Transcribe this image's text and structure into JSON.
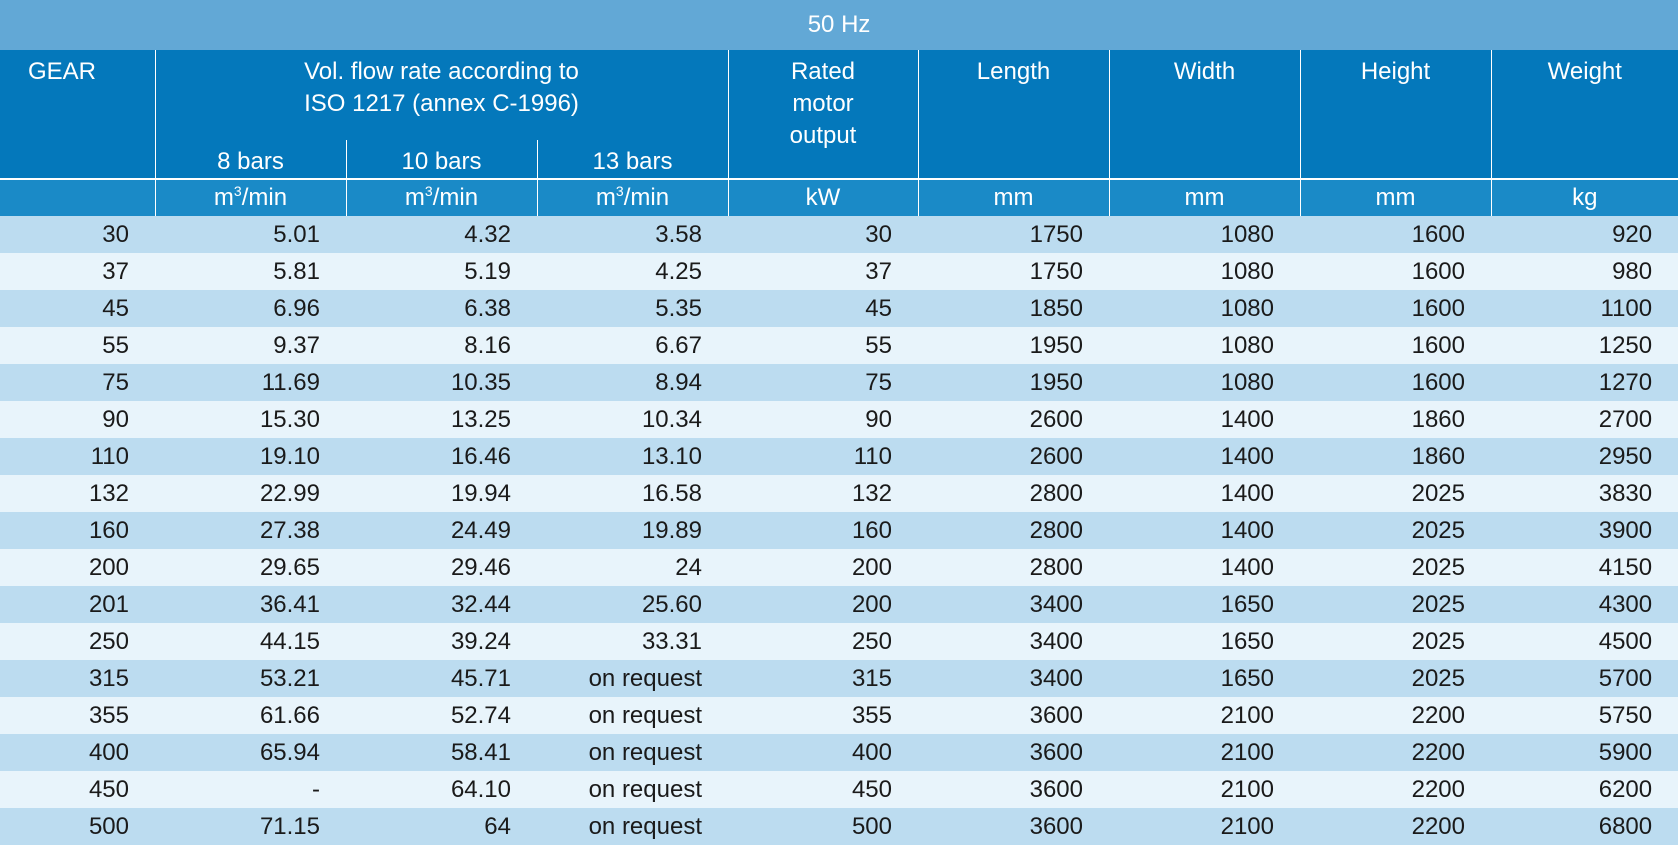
{
  "frequency": "50 Hz",
  "headers": {
    "gear": "GEAR",
    "flow_line1": "Vol. flow rate according to",
    "flow_line2": "ISO 1217 (annex C-1996)",
    "bars": [
      "8 bars",
      "10 bars",
      "13 bars"
    ],
    "rated_line1": "Rated",
    "rated_line2": "motor",
    "rated_line3": "output",
    "length": "Length",
    "width": "Width",
    "height": "Height",
    "weight": "Weight"
  },
  "units": {
    "gear": "",
    "flow_m": "m",
    "flow_sup": "3",
    "flow_rest": "/min",
    "rated": "kW",
    "length": "mm",
    "width": "mm",
    "height": "mm",
    "weight": "kg"
  },
  "rows": [
    [
      "30",
      "5.01",
      "4.32",
      "3.58",
      "30",
      "1750",
      "1080",
      "1600",
      "920"
    ],
    [
      "37",
      "5.81",
      "5.19",
      "4.25",
      "37",
      "1750",
      "1080",
      "1600",
      "980"
    ],
    [
      "45",
      "6.96",
      "6.38",
      "5.35",
      "45",
      "1850",
      "1080",
      "1600",
      "1100"
    ],
    [
      "55",
      "9.37",
      "8.16",
      "6.67",
      "55",
      "1950",
      "1080",
      "1600",
      "1250"
    ],
    [
      "75",
      "11.69",
      "10.35",
      "8.94",
      "75",
      "1950",
      "1080",
      "1600",
      "1270"
    ],
    [
      "90",
      "15.30",
      "13.25",
      "10.34",
      "90",
      "2600",
      "1400",
      "1860",
      "2700"
    ],
    [
      "110",
      "19.10",
      "16.46",
      "13.10",
      "110",
      "2600",
      "1400",
      "1860",
      "2950"
    ],
    [
      "132",
      "22.99",
      "19.94",
      "16.58",
      "132",
      "2800",
      "1400",
      "2025",
      "3830"
    ],
    [
      "160",
      "27.38",
      "24.49",
      "19.89",
      "160",
      "2800",
      "1400",
      "2025",
      "3900"
    ],
    [
      "200",
      "29.65",
      "29.46",
      "24",
      "200",
      "2800",
      "1400",
      "2025",
      "4150"
    ],
    [
      "201",
      "36.41",
      "32.44",
      "25.60",
      "200",
      "3400",
      "1650",
      "2025",
      "4300"
    ],
    [
      "250",
      "44.15",
      "39.24",
      "33.31",
      "250",
      "3400",
      "1650",
      "2025",
      "4500"
    ],
    [
      "315",
      "53.21",
      "45.71",
      "on request",
      "315",
      "3400",
      "1650",
      "2025",
      "5700"
    ],
    [
      "355",
      "61.66",
      "52.74",
      "on request",
      "355",
      "3600",
      "2100",
      "2200",
      "5750"
    ],
    [
      "400",
      "65.94",
      "58.41",
      "on request",
      "400",
      "3600",
      "2100",
      "2200",
      "5900"
    ],
    [
      "450",
      "-",
      "64.10",
      "on request",
      "450",
      "3600",
      "2100",
      "2200",
      "6200"
    ],
    [
      "500",
      "71.15",
      "64",
      "on request",
      "500",
      "3600",
      "2100",
      "2200",
      "6800"
    ]
  ]
}
